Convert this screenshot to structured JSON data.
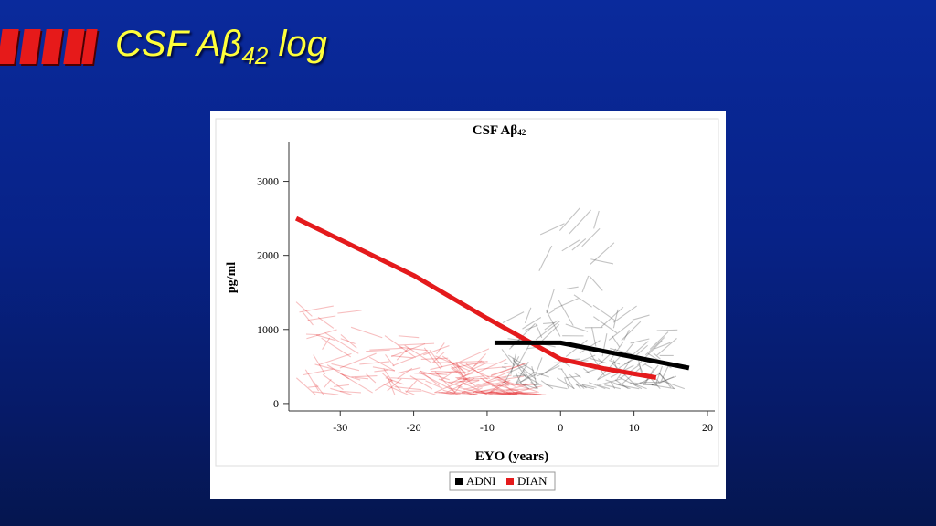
{
  "slide": {
    "title_main": "CSF Aβ",
    "title_sub": "42",
    "title_suffix": " log",
    "accent_color": "#e61a1a",
    "title_color": "#ffff3a"
  },
  "chart_data": {
    "type": "line",
    "title_main": "CSF Aβ",
    "title_sub": "42",
    "xlabel": "EYO (years)",
    "ylabel": "pg/ml",
    "xlim": [
      -37,
      21
    ],
    "ylim": [
      -100,
      3500
    ],
    "xticks": [
      -30,
      -20,
      -10,
      0,
      10,
      20
    ],
    "yticks": [
      0,
      1000,
      2000,
      3000
    ],
    "grid": false,
    "legend_position": "bottom",
    "series": [
      {
        "name": "ADNI",
        "color": "#000000",
        "x": [
          -9,
          0,
          17.5
        ],
        "y": [
          820,
          820,
          480
        ]
      },
      {
        "name": "DIAN",
        "color": "#e41a1c",
        "x": [
          -36,
          -20,
          -10,
          0,
          6,
          13
        ],
        "y": [
          2500,
          1730,
          1150,
          600,
          470,
          350
        ]
      }
    ]
  }
}
